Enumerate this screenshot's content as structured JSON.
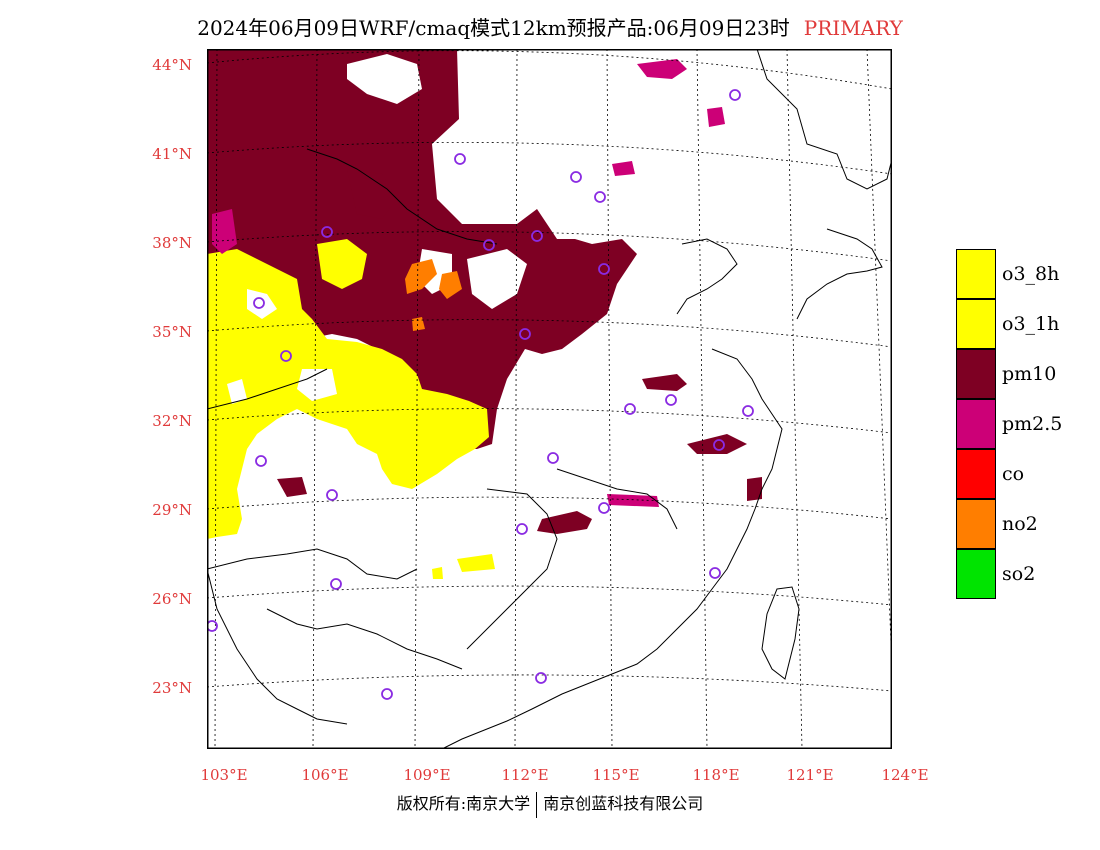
{
  "title": "2024年06月09日WRF/cmaq模式12km预报产品:06月09日23时",
  "title_tag": "PRIMARY",
  "lat_labels": [
    "44°N",
    "41°N",
    "38°N",
    "35°N",
    "32°N",
    "29°N",
    "26°N",
    "23°N"
  ],
  "lon_labels": [
    "103°E",
    "106°E",
    "109°E",
    "112°E",
    "115°E",
    "118°E",
    "121°E",
    "124°E"
  ],
  "legend": [
    {
      "label": "o3_8h",
      "color": "#ffff00"
    },
    {
      "label": "o3_1h",
      "color": "#ffff00"
    },
    {
      "label": "pm10",
      "color": "#7e0023"
    },
    {
      "label": "pm2.5",
      "color": "#cc0077"
    },
    {
      "label": "co",
      "color": "#ff0000"
    },
    {
      "label": "no2",
      "color": "#ff7e00"
    },
    {
      "label": "so2",
      "color": "#00e400"
    }
  ],
  "footer_left": "版权所有:南京大学",
  "footer_right": "南京创蓝科技有限公司",
  "colors": {
    "axis_label": "#e03a3a",
    "station_marker": "#8a2be2"
  }
}
